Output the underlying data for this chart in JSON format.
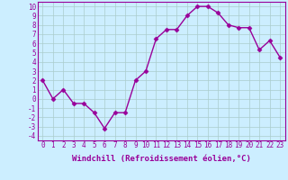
{
  "x": [
    0,
    1,
    2,
    3,
    4,
    5,
    6,
    7,
    8,
    9,
    10,
    11,
    12,
    13,
    14,
    15,
    16,
    17,
    18,
    19,
    20,
    21,
    22,
    23
  ],
  "y": [
    2,
    0,
    1,
    -0.5,
    -0.5,
    -1.5,
    -3.2,
    -1.5,
    -1.5,
    2,
    3,
    6.5,
    7.5,
    7.5,
    9,
    10,
    10,
    9.3,
    8,
    7.7,
    7.7,
    5.3,
    6.3,
    4.5
  ],
  "line_color": "#990099",
  "marker": "D",
  "marker_size": 2.5,
  "bg_color": "#cceeff",
  "grid_color": "#aacccc",
  "xlabel": "Windchill (Refroidissement éolien,°C)",
  "xlim": [
    -0.5,
    23.5
  ],
  "ylim": [
    -4.5,
    10.5
  ],
  "yticks": [
    -4,
    -3,
    -2,
    -1,
    0,
    1,
    2,
    3,
    4,
    5,
    6,
    7,
    8,
    9,
    10
  ],
  "xticks": [
    0,
    1,
    2,
    3,
    4,
    5,
    6,
    7,
    8,
    9,
    10,
    11,
    12,
    13,
    14,
    15,
    16,
    17,
    18,
    19,
    20,
    21,
    22,
    23
  ],
  "xlabel_fontsize": 6.5,
  "tick_fontsize": 5.5,
  "line_width": 1.0
}
